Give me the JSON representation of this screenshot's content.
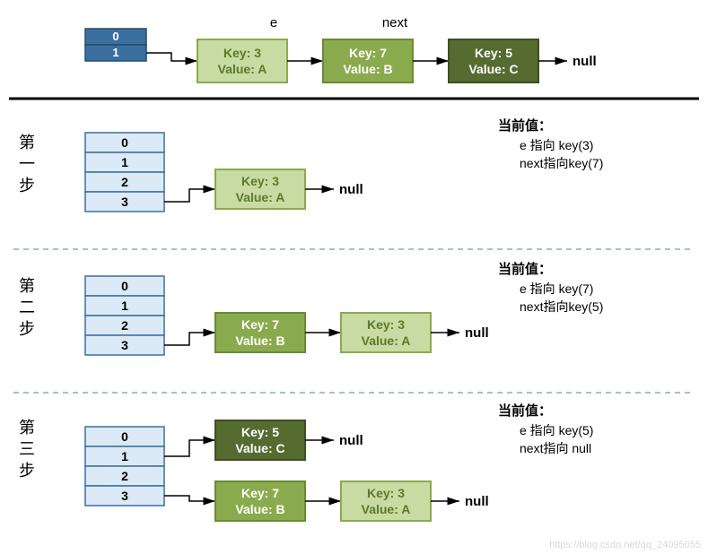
{
  "colors": {
    "blue_dark_fill": "#3b6fa0",
    "blue_dark_border": "#254b6e",
    "blue_dark_text": "#ffffff",
    "blue_light_fill": "#dbeaf6",
    "blue_light_border": "#3b6fa0",
    "green_light_fill": "#c7dba3",
    "green_light_border": "#8aab4d",
    "green_light_text": "#5a7a28",
    "green_mid_fill": "#8aab4d",
    "green_mid_border": "#6a8a35",
    "green_mid_text": "#ffffff",
    "green_dark_fill": "#556b2f",
    "green_dark_border": "#3e4f22",
    "green_dark_text": "#ffffff",
    "text_black": "#000000",
    "divider_solid": "#000000",
    "divider_dash": "#8bb0a0",
    "watermark": "#d8d8d8"
  },
  "header": {
    "index_labels": [
      "0",
      "1"
    ],
    "e_label": "e",
    "next_label": "next",
    "null_label": "null",
    "nodes": [
      {
        "key_line": "Key: 3",
        "val_line": "Value: A",
        "style": "light"
      },
      {
        "key_line": "Key: 7",
        "val_line": "Value: B",
        "style": "mid"
      },
      {
        "key_line": "Key: 5",
        "val_line": "Value: C",
        "style": "dark"
      }
    ]
  },
  "steps": [
    {
      "title_cn_1": "第",
      "title_cn_2": "一",
      "title_cn_3": "步",
      "index_labels": [
        "0",
        "1",
        "2",
        "3"
      ],
      "chains": [
        {
          "from_index": 3,
          "nodes": [
            {
              "key_line": "Key: 3",
              "val_line": "Value: A",
              "style": "light"
            }
          ],
          "null_label": "null"
        }
      ],
      "info_title": "当前值：",
      "info_line1": "e 指向 key(3)",
      "info_line2": "next指向key(7)"
    },
    {
      "title_cn_1": "第",
      "title_cn_2": "二",
      "title_cn_3": "步",
      "index_labels": [
        "0",
        "1",
        "2",
        "3"
      ],
      "chains": [
        {
          "from_index": 3,
          "nodes": [
            {
              "key_line": "Key: 7",
              "val_line": "Value: B",
              "style": "mid"
            },
            {
              "key_line": "Key: 3",
              "val_line": "Value: A",
              "style": "light"
            }
          ],
          "null_label": "null"
        }
      ],
      "info_title": "当前值：",
      "info_line1": "e 指向 key(7)",
      "info_line2": "next指向key(5)"
    },
    {
      "title_cn_1": "第",
      "title_cn_2": "三",
      "title_cn_3": "步",
      "index_labels": [
        "0",
        "1",
        "2",
        "3"
      ],
      "chains": [
        {
          "from_index": 1,
          "nodes": [
            {
              "key_line": "Key: 5",
              "val_line": "Value: C",
              "style": "dark"
            }
          ],
          "null_label": "null"
        },
        {
          "from_index": 3,
          "nodes": [
            {
              "key_line": "Key: 7",
              "val_line": "Value: B",
              "style": "mid"
            },
            {
              "key_line": "Key: 3",
              "val_line": "Value: A",
              "style": "light"
            }
          ],
          "null_label": "null"
        }
      ],
      "info_title": "当前值：",
      "info_line1": "e 指向 key(5)",
      "info_line2": "next指向 null"
    }
  ],
  "watermark": "https://blog.csdn.net/qq_24095055"
}
